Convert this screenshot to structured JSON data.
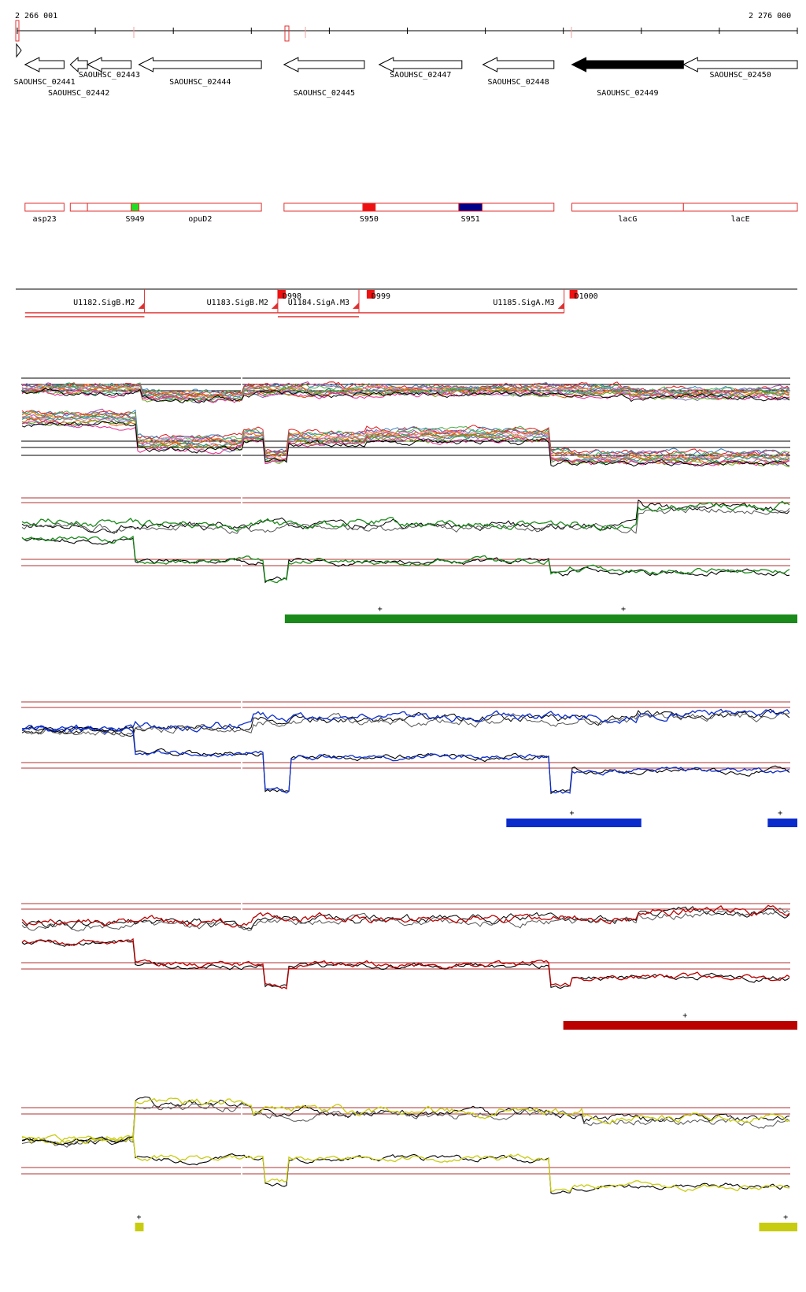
{
  "coords": {
    "start": "2 266 001",
    "end": "2 276 000",
    "start_bp": 2266001,
    "end_bp": 2276000
  },
  "genes": [
    {
      "name": "SAOUHSC_02441",
      "start_bp": 2266100,
      "end_bp": 2266600,
      "strand": "-",
      "fill": "#ffffff",
      "label_row": 0
    },
    {
      "name": "SAOUHSC_02442",
      "start_bp": 2266680,
      "end_bp": 2266900,
      "strand": "-",
      "fill": "#ffffff",
      "label_row": 1
    },
    {
      "name": "SAOUHSC_02443",
      "start_bp": 2266900,
      "end_bp": 2267460,
      "strand": "-",
      "fill": "#ffffff",
      "label_row": 2
    },
    {
      "name": "SAOUHSC_02444",
      "start_bp": 2267560,
      "end_bp": 2269130,
      "strand": "-",
      "fill": "#ffffff",
      "label_row": 0
    },
    {
      "name": "SAOUHSC_02445",
      "start_bp": 2269420,
      "end_bp": 2270450,
      "strand": "-",
      "fill": "#ffffff",
      "label_row": 1
    },
    {
      "name": "SAOUHSC_02447",
      "start_bp": 2270640,
      "end_bp": 2271700,
      "strand": "-",
      "fill": "#ffffff",
      "label_row": 2
    },
    {
      "name": "SAOUHSC_02448",
      "start_bp": 2271970,
      "end_bp": 2272880,
      "strand": "-",
      "fill": "#ffffff",
      "label_row": 0
    },
    {
      "name": "SAOUHSC_02449",
      "start_bp": 2273110,
      "end_bp": 2274540,
      "strand": "-",
      "fill": "#000000",
      "label_row": 1
    },
    {
      "name": "SAOUHSC_02450",
      "start_bp": 2274540,
      "end_bp": 2276000,
      "strand": "-",
      "fill": "#ffffff",
      "label_row": 2
    }
  ],
  "annotations": [
    {
      "label": "asp23",
      "start_bp": 2266100,
      "end_bp": 2266600,
      "fill": "#ffffff"
    },
    {
      "label": "",
      "start_bp": 2266680,
      "end_bp": 2266900,
      "fill": "#ffffff"
    },
    {
      "label": "",
      "start_bp": 2266900,
      "end_bp": 2267460,
      "fill": "#ffffff"
    },
    {
      "label": "S949",
      "start_bp": 2267460,
      "end_bp": 2267560,
      "fill": "#22dd22"
    },
    {
      "label": "opuD2",
      "start_bp": 2267560,
      "end_bp": 2269130,
      "fill": "#ffffff"
    },
    {
      "label": "",
      "start_bp": 2269420,
      "end_bp": 2270430,
      "fill": "#ffffff"
    },
    {
      "label": "S950",
      "start_bp": 2270430,
      "end_bp": 2270590,
      "fill": "#ee1111"
    },
    {
      "label": "",
      "start_bp": 2270590,
      "end_bp": 2271660,
      "fill": "#ffffff"
    },
    {
      "label": "S951",
      "start_bp": 2271660,
      "end_bp": 2271960,
      "fill": "#000088"
    },
    {
      "label": "",
      "start_bp": 2271960,
      "end_bp": 2272880,
      "fill": "#ffffff"
    },
    {
      "label": "lacG",
      "start_bp": 2273110,
      "end_bp": 2274540,
      "fill": "#ffffff"
    },
    {
      "label": "lacE",
      "start_bp": 2274540,
      "end_bp": 2276000,
      "fill": "#ffffff"
    }
  ],
  "transcription_units": [
    {
      "label": "U1182.SigB.M2",
      "start_bp": 2266100,
      "end_bp": 2267630
    },
    {
      "label": "U1183.SigB.M2",
      "start_bp": 2267630,
      "end_bp": 2269340
    },
    {
      "label": "U1184.SigA.M3",
      "start_bp": 2269340,
      "end_bp": 2270380
    },
    {
      "label": "U1185.SigA.M3",
      "start_bp": 2270380,
      "end_bp": 2273010
    }
  ],
  "promoters": [
    {
      "label": "D998",
      "start_bp": 2269340
    },
    {
      "label": "D999",
      "start_bp": 2270480
    },
    {
      "label": "D1000",
      "start_bp": 2273080
    }
  ],
  "colors": {
    "feature_outline": "#e03030",
    "reference_line": "#b03030",
    "green": "#1a8a1a",
    "blue": "#0a2ccc",
    "red": "#bb0000",
    "yellow": "#c8cc10"
  },
  "condition_panels": [
    {
      "color": "#1a8a1a",
      "bars": [
        {
          "start_bp": 2269430,
          "end_bp": 2276000
        }
      ],
      "plus_bp": [
        2270650,
        2273770
      ]
    },
    {
      "color": "#0a2ccc",
      "bars": [
        {
          "start_bp": 2272270,
          "end_bp": 2274000
        },
        {
          "start_bp": 2275620,
          "end_bp": 2276000
        }
      ],
      "plus_bp": [
        2273110,
        2275780
      ]
    },
    {
      "color": "#bb0000",
      "bars": [
        {
          "start_bp": 2273000,
          "end_bp": 2276000
        }
      ],
      "plus_bp": [
        2274560
      ]
    },
    {
      "color": "#c8cc10",
      "bars": [
        {
          "start_bp": 2267510,
          "end_bp": 2267620
        },
        {
          "start_bp": 2275510,
          "end_bp": 2276000
        }
      ],
      "plus_bp": [
        2267560,
        2275850
      ]
    }
  ]
}
